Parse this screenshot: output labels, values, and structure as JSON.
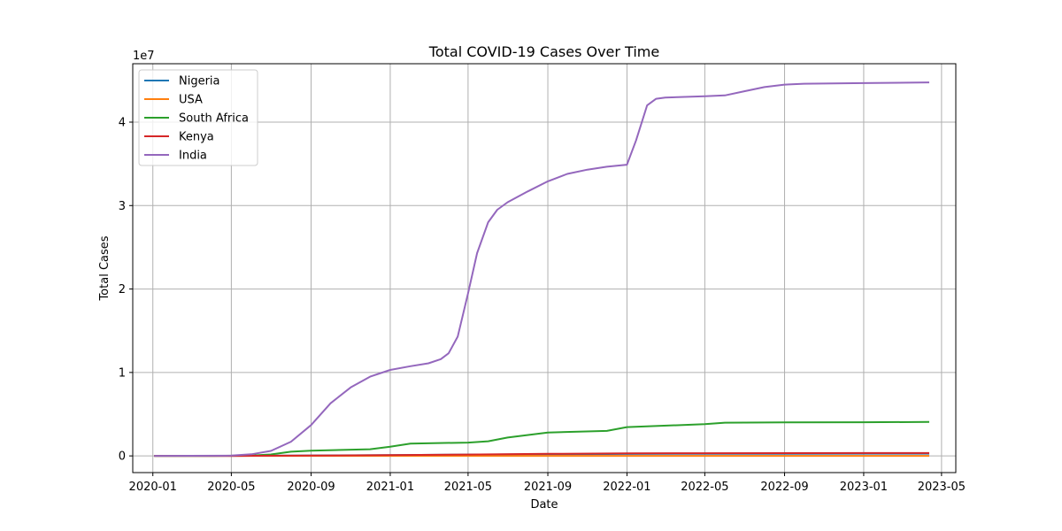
{
  "chart_data": {
    "type": "line",
    "title": "Total COVID-19 Cases Over Time",
    "xlabel": "Date",
    "ylabel": "Total Cases",
    "y_offset_label": "1e7",
    "ylim": [
      -2000000,
      47000000
    ],
    "xlim": [
      "2019-12-01",
      "2023-05-23"
    ],
    "grid": true,
    "legend_position": "top-left",
    "x_ticks": [
      "2020-01",
      "2020-05",
      "2020-09",
      "2021-01",
      "2021-05",
      "2021-09",
      "2022-01",
      "2022-05",
      "2022-09",
      "2023-01",
      "2023-05"
    ],
    "y_ticks": [
      0,
      10000000,
      20000000,
      30000000,
      40000000
    ],
    "y_tick_labels": [
      "0",
      "1",
      "2",
      "3",
      "4"
    ],
    "series": [
      {
        "name": "Nigeria",
        "color": "#1f77b4",
        "points": [
          [
            "2020-01-03",
            0
          ],
          [
            "2020-05-01",
            2000
          ],
          [
            "2020-09-01",
            54000
          ],
          [
            "2021-01-01",
            90000
          ],
          [
            "2021-05-01",
            165000
          ],
          [
            "2021-09-01",
            197000
          ],
          [
            "2022-01-01",
            243000
          ],
          [
            "2022-05-01",
            256000
          ],
          [
            "2022-09-01",
            264000
          ],
          [
            "2023-01-01",
            266000
          ],
          [
            "2023-04-12",
            266600
          ]
        ]
      },
      {
        "name": "USA",
        "color": "#ff7f0e",
        "points": [
          [
            "2020-01-03",
            0
          ],
          [
            "2020-05-01",
            0
          ],
          [
            "2020-09-01",
            0
          ],
          [
            "2021-01-01",
            0
          ],
          [
            "2021-05-01",
            0
          ],
          [
            "2021-09-01",
            0
          ],
          [
            "2022-01-01",
            0
          ],
          [
            "2022-05-01",
            0
          ],
          [
            "2022-09-01",
            0
          ],
          [
            "2023-01-01",
            0
          ],
          [
            "2023-04-12",
            0
          ]
        ]
      },
      {
        "name": "South Africa",
        "color": "#2ca02c",
        "points": [
          [
            "2020-01-03",
            0
          ],
          [
            "2020-04-01",
            1500
          ],
          [
            "2020-06-01",
            40000
          ],
          [
            "2020-07-01",
            170000
          ],
          [
            "2020-08-01",
            500000
          ],
          [
            "2020-09-01",
            630000
          ],
          [
            "2020-12-01",
            800000
          ],
          [
            "2021-01-01",
            1100000
          ],
          [
            "2021-02-01",
            1480000
          ],
          [
            "2021-05-01",
            1600000
          ],
          [
            "2021-06-01",
            1750000
          ],
          [
            "2021-07-01",
            2200000
          ],
          [
            "2021-09-01",
            2800000
          ],
          [
            "2021-12-01",
            3000000
          ],
          [
            "2022-01-01",
            3450000
          ],
          [
            "2022-05-01",
            3800000
          ],
          [
            "2022-06-01",
            3980000
          ],
          [
            "2022-09-01",
            4010000
          ],
          [
            "2023-01-01",
            4040000
          ],
          [
            "2023-04-12",
            4070000
          ]
        ]
      },
      {
        "name": "Kenya",
        "color": "#d62728",
        "points": [
          [
            "2020-01-03",
            0
          ],
          [
            "2020-05-01",
            400
          ],
          [
            "2020-09-01",
            36000
          ],
          [
            "2021-01-01",
            97000
          ],
          [
            "2021-05-01",
            162000
          ],
          [
            "2021-09-01",
            245000
          ],
          [
            "2022-01-01",
            300000
          ],
          [
            "2022-05-01",
            324000
          ],
          [
            "2022-09-01",
            338000
          ],
          [
            "2023-01-01",
            342000
          ],
          [
            "2023-04-12",
            343000
          ]
        ]
      },
      {
        "name": "India",
        "color": "#9467bd",
        "points": [
          [
            "2020-01-03",
            0
          ],
          [
            "2020-05-01",
            35000
          ],
          [
            "2020-06-01",
            200000
          ],
          [
            "2020-07-01",
            600000
          ],
          [
            "2020-08-01",
            1700000
          ],
          [
            "2020-09-01",
            3700000
          ],
          [
            "2020-10-01",
            6300000
          ],
          [
            "2020-11-01",
            8200000
          ],
          [
            "2020-12-01",
            9500000
          ],
          [
            "2021-01-01",
            10300000
          ],
          [
            "2021-02-01",
            10750000
          ],
          [
            "2021-03-01",
            11100000
          ],
          [
            "2021-03-20",
            11600000
          ],
          [
            "2021-04-01",
            12300000
          ],
          [
            "2021-04-15",
            14300000
          ],
          [
            "2021-05-01",
            19500000
          ],
          [
            "2021-05-15",
            24300000
          ],
          [
            "2021-06-01",
            28000000
          ],
          [
            "2021-06-15",
            29500000
          ],
          [
            "2021-07-01",
            30400000
          ],
          [
            "2021-08-01",
            31700000
          ],
          [
            "2021-09-01",
            32900000
          ],
          [
            "2021-10-01",
            33800000
          ],
          [
            "2021-11-01",
            34300000
          ],
          [
            "2021-12-01",
            34650000
          ],
          [
            "2022-01-01",
            34900000
          ],
          [
            "2022-01-15",
            37800000
          ],
          [
            "2022-02-01",
            42000000
          ],
          [
            "2022-02-15",
            42800000
          ],
          [
            "2022-03-01",
            42950000
          ],
          [
            "2022-05-01",
            43100000
          ],
          [
            "2022-06-01",
            43200000
          ],
          [
            "2022-07-01",
            43700000
          ],
          [
            "2022-08-01",
            44200000
          ],
          [
            "2022-09-01",
            44500000
          ],
          [
            "2022-10-01",
            44600000
          ],
          [
            "2023-01-01",
            44680000
          ],
          [
            "2023-04-12",
            44760000
          ]
        ]
      }
    ]
  }
}
